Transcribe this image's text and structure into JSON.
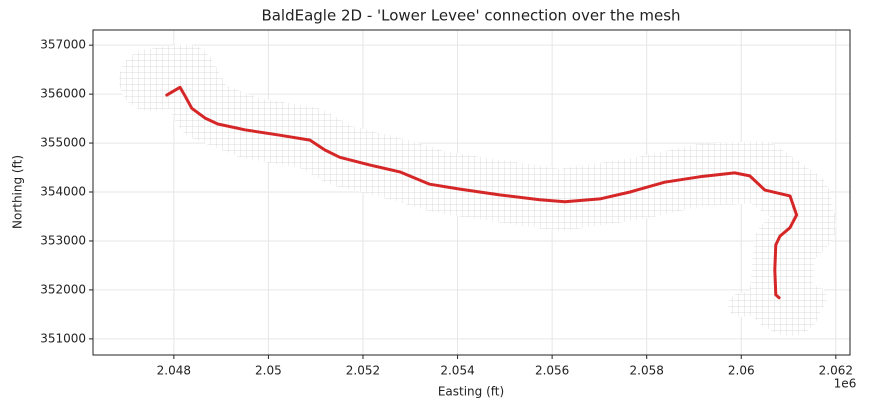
{
  "chart_data": {
    "type": "line",
    "title": "BaldEagle 2D - 'Lower Levee' connection over the mesh",
    "x_label": "Easting (ft)",
    "y_label": "Northing (ft)",
    "x_offset_label": "1e6",
    "x": [
      2.04785,
      2.04813,
      2.04825,
      2.04838,
      2.04866,
      2.04893,
      2.0495,
      2.05024,
      2.05088,
      2.05119,
      2.05151,
      2.05215,
      2.05278,
      2.05341,
      2.05405,
      2.05489,
      2.05574,
      2.05627,
      2.05701,
      2.05765,
      2.05838,
      2.05912,
      2.05986,
      2.06018,
      2.0605,
      2.06103,
      2.06117,
      2.06103,
      2.06082,
      2.06073,
      2.06071,
      2.06073,
      2.0608
    ],
    "values": [
      355980,
      356140,
      355940,
      355710,
      355510,
      355390,
      355270,
      355160,
      355060,
      354860,
      354710,
      354550,
      354410,
      354160,
      354060,
      353940,
      353840,
      353800,
      353860,
      354000,
      354200,
      354310,
      354390,
      354330,
      354040,
      353920,
      353530,
      353270,
      353100,
      352920,
      352410,
      351900,
      351840
    ],
    "color": "#d62728",
    "xlim": [
      2.04629,
      2.0623
    ],
    "xticks": [
      2.048,
      2.05,
      2.052,
      2.054,
      2.056,
      2.058,
      2.06,
      2.062
    ],
    "ylim": [
      350670,
      357310
    ],
    "yticks": [
      351000,
      352000,
      353000,
      354000,
      355000,
      356000,
      357000
    ],
    "grid": true
  }
}
